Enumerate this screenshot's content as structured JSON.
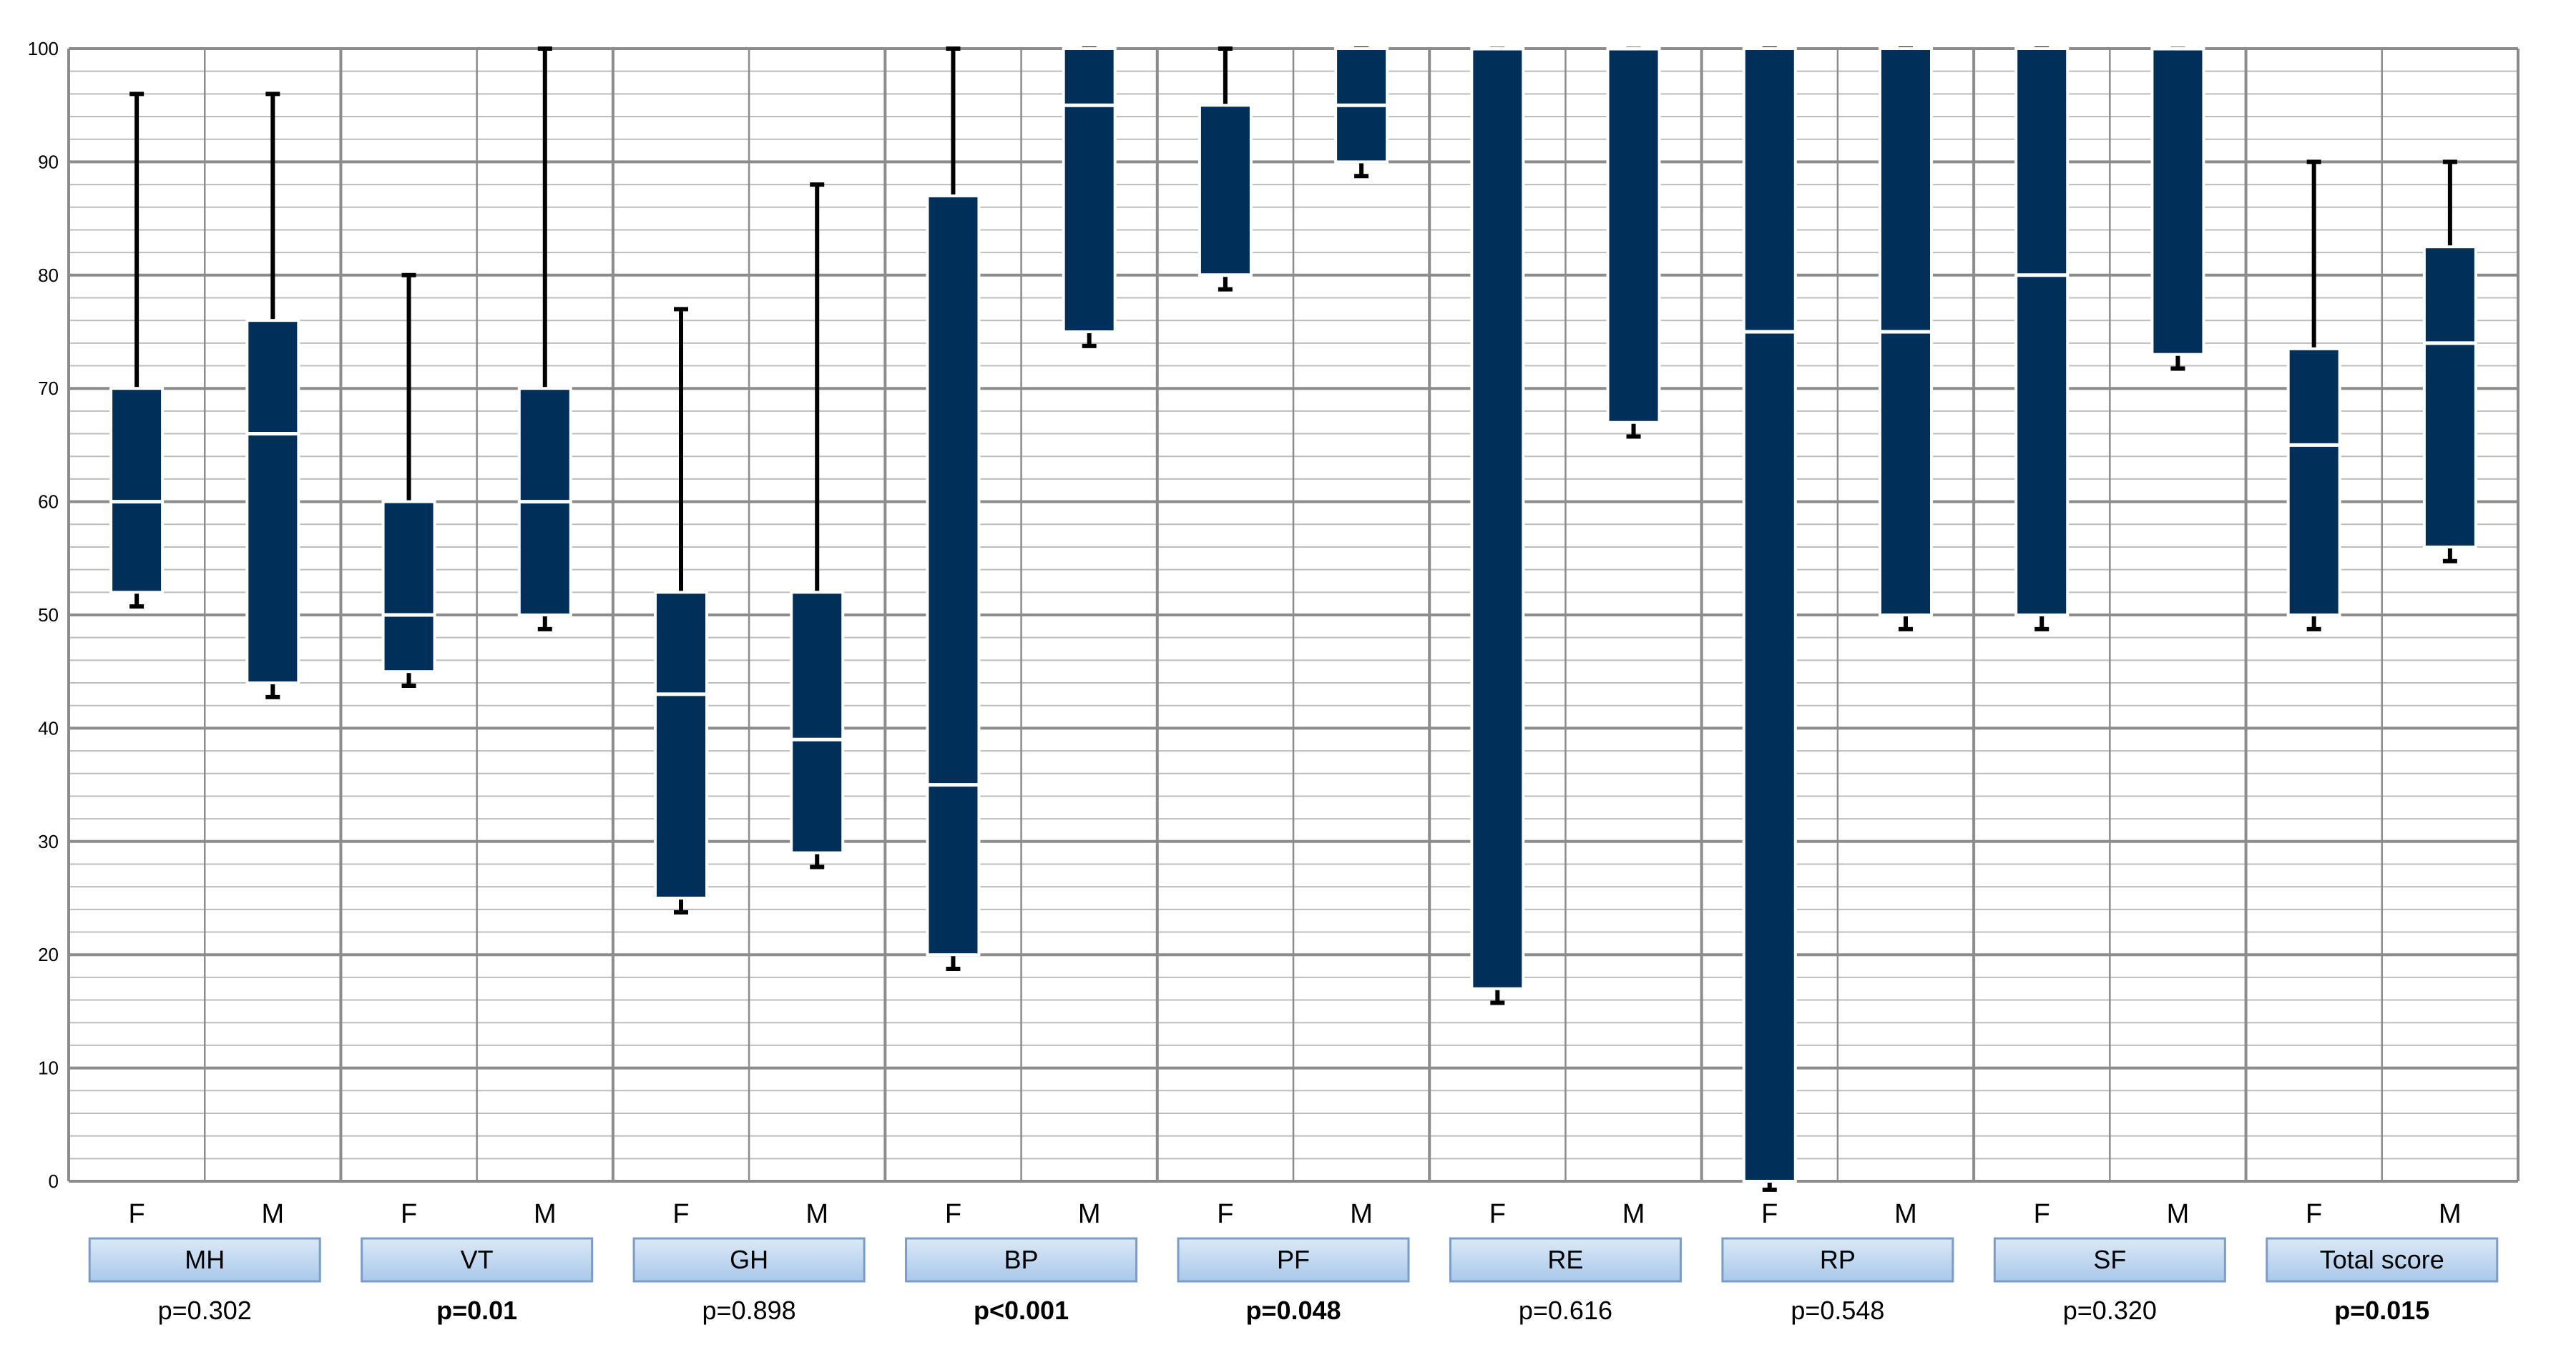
{
  "chart_data": {
    "type": "boxplot",
    "title": "",
    "xlabel": "",
    "ylabel": "",
    "ylim": [
      0,
      100
    ],
    "y_ticks": [
      0,
      10,
      20,
      30,
      40,
      50,
      60,
      70,
      80,
      90,
      100
    ],
    "grid": true,
    "colors": {
      "box": "#00305a",
      "whisker": "#000000",
      "grid_major": "#8c8c8c",
      "grid_minor": "#bdbdbd",
      "label_fill_top": "#dbe9f7",
      "label_fill_bottom": "#a9c8ea",
      "label_stroke": "#7a9cc6"
    },
    "groups": [
      {
        "name": "MH",
        "p_value": "p=0.302",
        "significant": false,
        "boxes": [
          {
            "sex": "F",
            "min": 51,
            "q1": 52,
            "median": 60,
            "q3": 70,
            "max": 96
          },
          {
            "sex": "M",
            "min": 43,
            "q1": 44,
            "median": 66,
            "q3": 76,
            "max": 96
          }
        ]
      },
      {
        "name": "VT",
        "p_value": "p=0.01",
        "significant": true,
        "boxes": [
          {
            "sex": "F",
            "min": 44,
            "q1": 45,
            "median": 50,
            "q3": 60,
            "max": 80
          },
          {
            "sex": "M",
            "min": 49,
            "q1": 50,
            "median": 60,
            "q3": 70,
            "max": 100
          }
        ]
      },
      {
        "name": "GH",
        "p_value": "p=0.898",
        "significant": false,
        "boxes": [
          {
            "sex": "F",
            "min": 24,
            "q1": 25,
            "median": 43,
            "q3": 52,
            "max": 77
          },
          {
            "sex": "M",
            "min": 28,
            "q1": 29,
            "median": 39,
            "q3": 52,
            "max": 88
          }
        ]
      },
      {
        "name": "BP",
        "p_value": "p<0.001",
        "significant": true,
        "boxes": [
          {
            "sex": "F",
            "min": 19,
            "q1": 20,
            "median": 35,
            "q3": 87,
            "max": 100
          },
          {
            "sex": "M",
            "min": 74,
            "q1": 75,
            "median": 95,
            "q3": 100,
            "max": 100
          }
        ]
      },
      {
        "name": "PF",
        "p_value": "p=0.048",
        "significant": true,
        "boxes": [
          {
            "sex": "F",
            "min": 79,
            "q1": 80,
            "median": 80,
            "q3": 95,
            "max": 100
          },
          {
            "sex": "M",
            "min": 89,
            "q1": 90,
            "median": 95,
            "q3": 100,
            "max": 100
          }
        ]
      },
      {
        "name": "RE",
        "p_value": "p=0.616",
        "significant": false,
        "boxes": [
          {
            "sex": "F",
            "min": 16,
            "q1": 17,
            "median": 100,
            "q3": 100,
            "max": 100
          },
          {
            "sex": "M",
            "min": 66,
            "q1": 67,
            "median": 100,
            "q3": 100,
            "max": 100
          }
        ]
      },
      {
        "name": "RP",
        "p_value": "p=0.548",
        "significant": false,
        "boxes": [
          {
            "sex": "F",
            "min": -0.5,
            "q1": 0,
            "median": 75,
            "q3": 100,
            "max": 100
          },
          {
            "sex": "M",
            "min": 49,
            "q1": 50,
            "median": 75,
            "q3": 100,
            "max": 100
          }
        ]
      },
      {
        "name": "SF",
        "p_value": "p=0.320",
        "significant": false,
        "boxes": [
          {
            "sex": "F",
            "min": 49,
            "q1": 50,
            "median": 80,
            "q3": 100,
            "max": 100
          },
          {
            "sex": "M",
            "min": 72,
            "q1": 73,
            "median": 100,
            "q3": 100,
            "max": 100
          }
        ]
      },
      {
        "name": "Total score",
        "p_value": "p=0.015",
        "significant": true,
        "boxes": [
          {
            "sex": "F",
            "min": 49,
            "q1": 50,
            "median": 65,
            "q3": 73.5,
            "max": 90
          },
          {
            "sex": "M",
            "min": 55,
            "q1": 56,
            "median": 74,
            "q3": 82.5,
            "max": 90
          }
        ]
      }
    ]
  }
}
